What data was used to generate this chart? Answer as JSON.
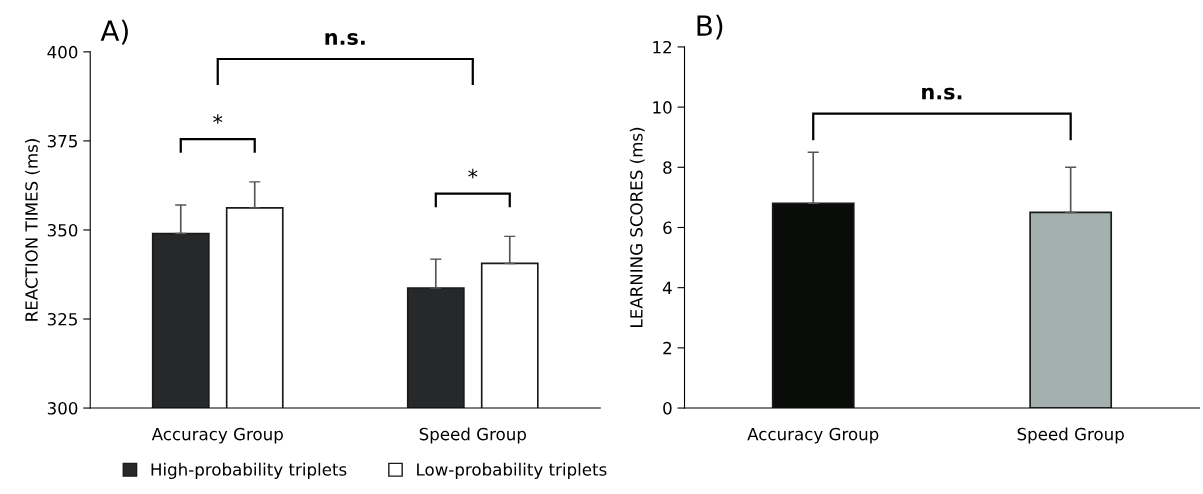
{
  "chart_data": [
    {
      "type": "bar",
      "title": "A)",
      "ylabel": "REACTION TIMES (ms)",
      "categories": [
        "Accuracy Group",
        "Speed Group"
      ],
      "series": [
        {
          "name": "High-probability triplets",
          "color": "#262829",
          "values": [
            349,
            333.7
          ],
          "errors": [
            [
              349,
              357
            ],
            [
              333.7,
              341.8
            ]
          ]
        },
        {
          "name": "Low-probability triplets",
          "color": "#ffffff",
          "values": [
            356.2,
            340.6
          ],
          "errors": [
            [
              356.2,
              363.5
            ],
            [
              340.6,
              348.2
            ]
          ]
        }
      ],
      "ylim": [
        300,
        400
      ],
      "yticks": [
        300,
        325,
        350,
        375,
        400
      ],
      "legend": "bottom",
      "grid": false,
      "annotations": [
        "n.s.",
        "*",
        "*"
      ]
    },
    {
      "type": "bar",
      "title": "B)",
      "ylabel": "LEARNING SCORES (ms)",
      "categories": [
        "Accuracy Group",
        "Speed Group"
      ],
      "values": [
        6.8,
        6.5
      ],
      "colors": [
        "#0a0c0a",
        "#a3b0ae"
      ],
      "errors": [
        [
          6.8,
          8.5
        ],
        [
          6.5,
          8.0
        ]
      ],
      "ylim": [
        0,
        12
      ],
      "yticks": [
        0,
        2,
        4,
        6,
        8,
        10,
        12
      ],
      "grid": false,
      "legend": false,
      "annotations": [
        "n.s."
      ]
    }
  ]
}
